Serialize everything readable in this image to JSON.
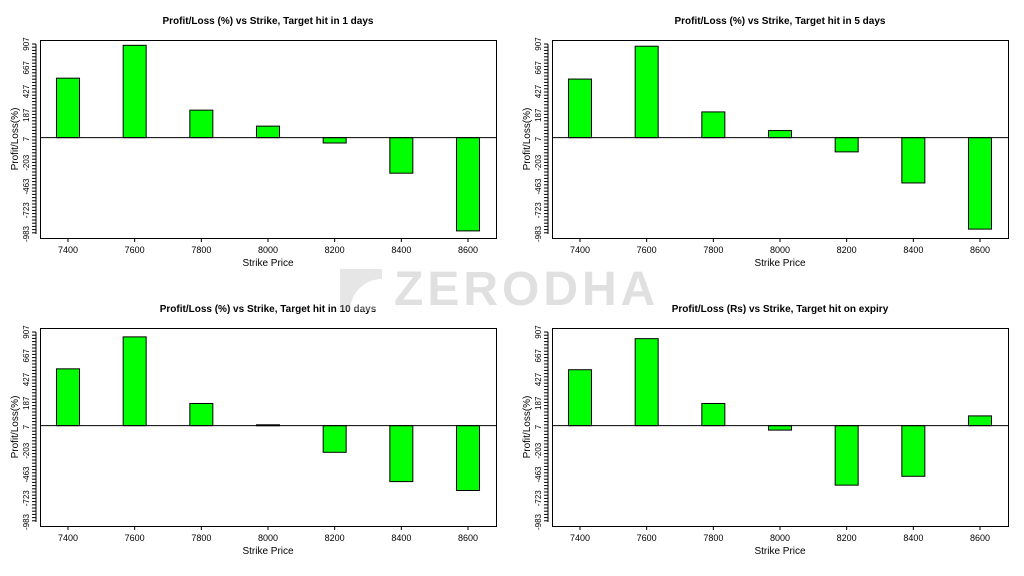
{
  "watermark": {
    "text": "ZERODHA"
  },
  "colors": {
    "bar_fill": "#00ff00",
    "bar_stroke": "#000000"
  },
  "chart_data": [
    {
      "type": "bar",
      "title": "Profit/Loss (%) vs Strike, Target hit in 1 days",
      "xlabel": "Strike Price",
      "ylabel": "Profit/Loss(%)",
      "categories": [
        "7400",
        "7600",
        "7800",
        "8000",
        "8200",
        "8400",
        "8600"
      ],
      "values": [
        670,
        1040,
        310,
        130,
        -60,
        -400,
        -1050
      ],
      "yticks": [
        "-983",
        "-723",
        "-463",
        "-203",
        "7",
        "187",
        "427",
        "667",
        "907"
      ],
      "ylim": [
        -1130,
        1100
      ],
      "grid": false
    },
    {
      "type": "bar",
      "title": "Profit/Loss (%) vs Strike, Target hit in 5 days",
      "xlabel": "Strike Price",
      "ylabel": "Profit/Loss(%)",
      "categories": [
        "7400",
        "7600",
        "7800",
        "8000",
        "8200",
        "8400",
        "8600"
      ],
      "values": [
        660,
        1030,
        290,
        80,
        -160,
        -510,
        -1030
      ],
      "yticks": [
        "-983",
        "-723",
        "-463",
        "-203",
        "7",
        "187",
        "427",
        "667",
        "907"
      ],
      "ylim": [
        -1130,
        1100
      ],
      "grid": false
    },
    {
      "type": "bar",
      "title": "Profit/Loss (%) vs Strike, Target hit in 10 days",
      "xlabel": "Strike Price",
      "ylabel": "Profit/Loss(%)",
      "categories": [
        "7400",
        "7600",
        "7800",
        "8000",
        "8200",
        "8400",
        "8600"
      ],
      "values": [
        640,
        1000,
        250,
        10,
        -300,
        -630,
        -730
      ],
      "yticks": [
        "-983",
        "-723",
        "-463",
        "-203",
        "7",
        "187",
        "427",
        "667",
        "907"
      ],
      "ylim": [
        -1130,
        1100
      ],
      "grid": false
    },
    {
      "type": "bar",
      "title": "Profit/Loss (Rs) vs Strike, Target hit on expiry",
      "xlabel": "Strike Price",
      "ylabel": "Profit/Loss(%)",
      "categories": [
        "7400",
        "7600",
        "7800",
        "8000",
        "8200",
        "8400",
        "8600"
      ],
      "values": [
        630,
        980,
        250,
        -50,
        -670,
        -570,
        110
      ],
      "yticks": [
        "-983",
        "-723",
        "-463",
        "-203",
        "7",
        "187",
        "427",
        "667",
        "907"
      ],
      "ylim": [
        -1130,
        1100
      ],
      "grid": false
    }
  ]
}
